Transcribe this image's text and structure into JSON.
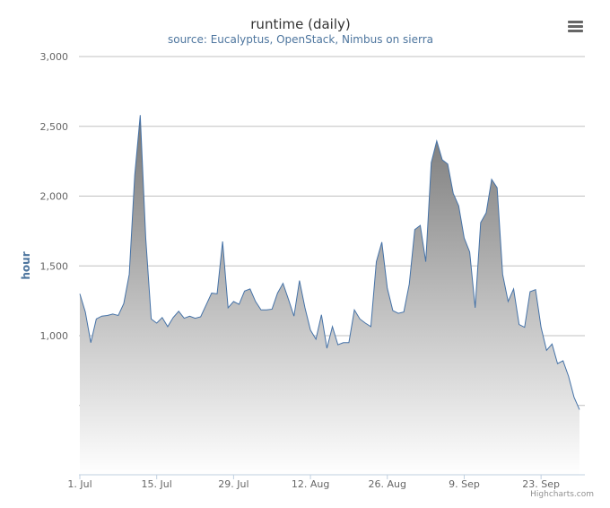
{
  "chart_data": {
    "type": "area",
    "title": "runtime (daily)",
    "subtitle": "source: Eucalyptus, OpenStack, Nimbus on sierra",
    "ylabel": "hour",
    "xlabel": "",
    "ylim": [
      0,
      3000
    ],
    "ytick_labels": [
      "3,000",
      "2,500",
      "2,000",
      "1,500",
      "1,000"
    ],
    "yticks": [
      3000,
      2500,
      2000,
      1500,
      1000
    ],
    "xtick_labels": [
      "1. Jul",
      "15. Jul",
      "29. Jul",
      "12. Aug",
      "26. Aug",
      "9. Sep",
      "23. Sep"
    ],
    "xticks": [
      0,
      14,
      28,
      42,
      56,
      70,
      84
    ],
    "grid": true,
    "legend": "none",
    "color": "#4572a7",
    "credits": "Highcharts.com",
    "x_start": "2013-07-01",
    "values": [
      1300,
      1170,
      950,
      1120,
      1140,
      1145,
      1155,
      1145,
      1230,
      1440,
      2150,
      2580,
      1700,
      1120,
      1090,
      1130,
      1065,
      1130,
      1175,
      1125,
      1140,
      1125,
      1135,
      1220,
      1305,
      1300,
      1675,
      1200,
      1245,
      1225,
      1320,
      1335,
      1245,
      1185,
      1185,
      1190,
      1305,
      1375,
      1260,
      1140,
      1395,
      1200,
      1040,
      975,
      1150,
      910,
      1065,
      935,
      950,
      950,
      1185,
      1120,
      1090,
      1065,
      1530,
      1670,
      1340,
      1180,
      1160,
      1170,
      1370,
      1760,
      1790,
      1530,
      2240,
      2395,
      2260,
      2230,
      2020,
      1930,
      1700,
      1600,
      1200,
      1810,
      1880,
      2120,
      2060,
      1440,
      1245,
      1335,
      1080,
      1060,
      1315,
      1330,
      1060,
      895,
      940,
      800,
      820,
      710,
      560,
      470
    ]
  },
  "menu": {
    "icon": "menu-icon"
  }
}
